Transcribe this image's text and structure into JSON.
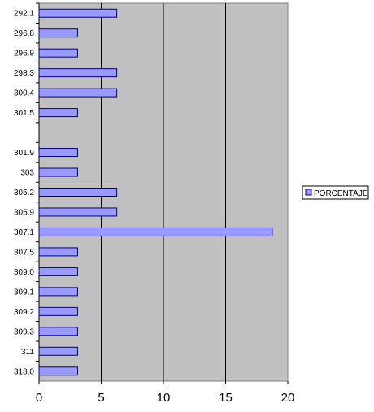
{
  "chart_data": {
    "type": "bar",
    "orientation": "horizontal",
    "categories": [
      "292.1",
      "296.8",
      "296.9",
      "298.3",
      "300.4",
      "301.5",
      "",
      "301.9",
      "303",
      "305.2",
      "305.9",
      "307.1",
      "307.5",
      "309.0",
      "309.1",
      "309.2",
      "309.3",
      "311",
      "318.0"
    ],
    "series": [
      {
        "name": "PORCENTAJE",
        "values": [
          6.25,
          3.1,
          3.1,
          6.25,
          6.25,
          3.1,
          null,
          3.1,
          3.1,
          6.25,
          6.25,
          18.75,
          3.1,
          3.1,
          3.1,
          3.1,
          3.1,
          3.1,
          3.1
        ]
      }
    ],
    "title": "",
    "xlabel": "",
    "ylabel": "",
    "xlim": [
      0,
      20
    ],
    "x_ticks": [
      "0",
      "5",
      "10",
      "15",
      "20"
    ],
    "grid": "vertical major gridlines",
    "legend_position": "right",
    "colors": {
      "bar_fill": "#9999ff",
      "bar_stroke": "#000080",
      "plot_background": "#c0c0c0"
    }
  }
}
